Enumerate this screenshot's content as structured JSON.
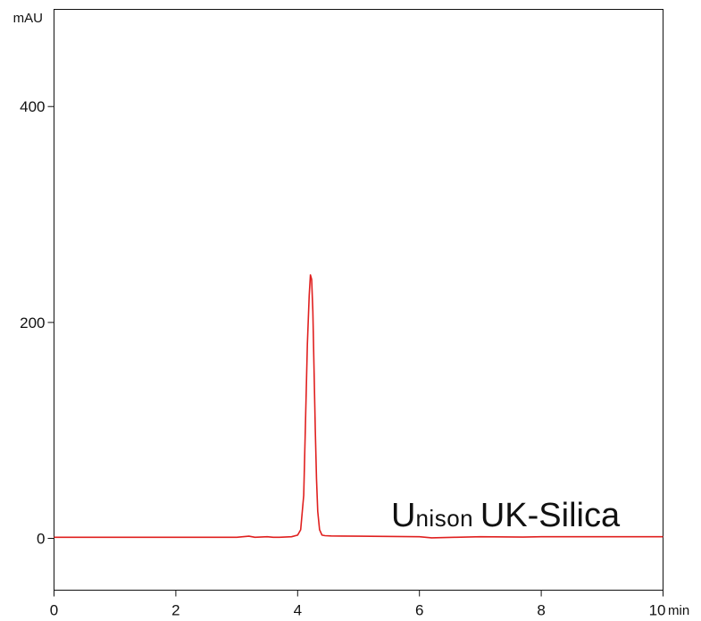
{
  "chart_data": {
    "type": "line",
    "title": "",
    "xlabel": "",
    "ylabel": "",
    "x_unit": "min",
    "y_unit": "mAU",
    "xlim": [
      0,
      10
    ],
    "ylim": [
      -48,
      490
    ],
    "x_ticks": [
      0,
      2,
      4,
      6,
      8,
      10
    ],
    "y_ticks": [
      0,
      200,
      400
    ],
    "grid": false,
    "series": [
      {
        "color": "#e0201f",
        "x": [
          0,
          1,
          2,
          3,
          3.2,
          3.3,
          3.5,
          3.6,
          3.7,
          3.9,
          4.0,
          4.05,
          4.1,
          4.13,
          4.16,
          4.19,
          4.21,
          4.23,
          4.25,
          4.27,
          4.29,
          4.31,
          4.33,
          4.36,
          4.4,
          4.45,
          4.55,
          5,
          6,
          6.2,
          6.6,
          7,
          7.7,
          8.0,
          9,
          10
        ],
        "y": [
          1,
          1,
          1,
          1,
          2,
          1,
          1.5,
          1,
          1,
          1.5,
          3,
          8,
          40,
          110,
          180,
          225,
          244,
          240,
          210,
          155,
          100,
          55,
          25,
          8,
          3,
          2.5,
          2.2,
          2,
          1.5,
          0.5,
          1,
          1.5,
          1.2,
          1.5,
          1.5,
          1.5
        ]
      }
    ],
    "annotation": {
      "brand_initial": "U",
      "brand_rest": "nison",
      "product": "UK-Silica"
    }
  }
}
